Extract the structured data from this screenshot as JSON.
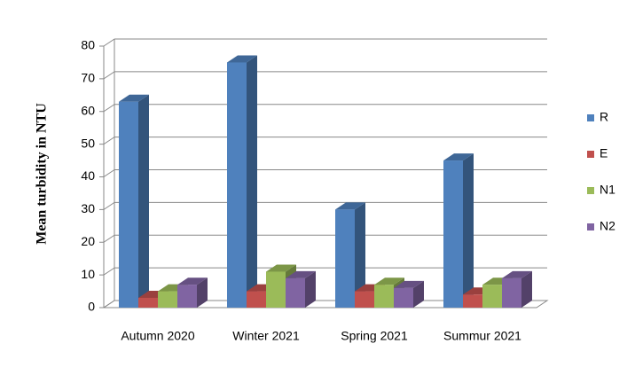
{
  "chart_data": {
    "type": "bar3d",
    "y_label": "Mean turbidity in NTU",
    "categories": [
      "Autumn 2020",
      "Winter 2021",
      "Spring 2021",
      "Summur 2021"
    ],
    "series": [
      {
        "name": "R",
        "color": "#4f81bd",
        "values": [
          63,
          75,
          30,
          45
        ]
      },
      {
        "name": "E",
        "color": "#c0504d",
        "values": [
          3,
          5,
          5,
          4
        ]
      },
      {
        "name": "N1",
        "color": "#9bbb59",
        "values": [
          5,
          11,
          7,
          7
        ]
      },
      {
        "name": "N2",
        "color": "#8064a2",
        "values": [
          7,
          9,
          6,
          9
        ]
      }
    ],
    "ylim": [
      0,
      80
    ],
    "yticks": [
      0,
      10,
      20,
      30,
      40,
      50,
      60,
      70,
      80
    ],
    "grid": true,
    "legend": "right"
  }
}
